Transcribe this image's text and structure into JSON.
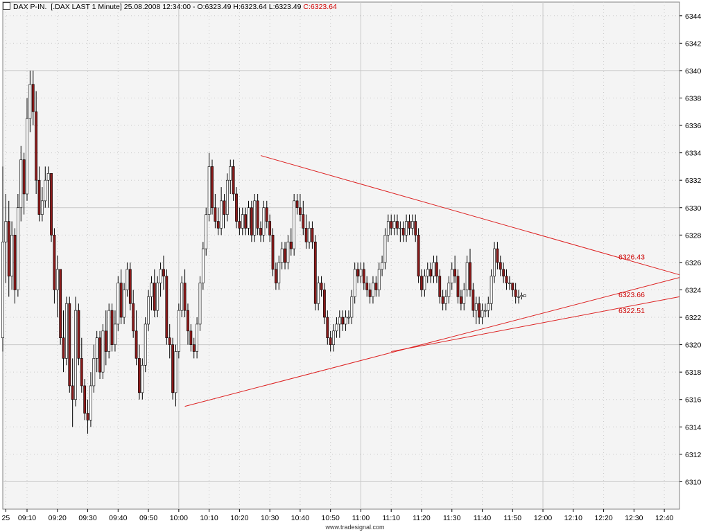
{
  "header": {
    "instrument": "DAX P-IN.",
    "description": "[.DAX LAST 1 Minute]",
    "datetime": "25.08.2008 12:34:00",
    "ohlc": "O:6323.49 H:6323.64 L:6323.49",
    "close": "C:6323.64"
  },
  "footer": {
    "watermark": "www.tradesignal.com"
  },
  "colors": {
    "background": "#f4f4f4",
    "grid": "#c8c8c8",
    "up_candle": "#ffffff",
    "down_candle": "#8b1a1a",
    "trendline": "#dd2222",
    "label": "#cc0000"
  },
  "chart_data": {
    "type": "candlestick",
    "ylim": [
      6308,
      6345
    ],
    "xlim_minutes": [
      542,
      765
    ],
    "y_ticks": [
      6310,
      6312,
      6314,
      6316,
      6318,
      6320,
      6322,
      6324,
      6326,
      6328,
      6330,
      6332,
      6334,
      6336,
      6338,
      6340,
      6342,
      6344
    ],
    "y_tick_labels": [
      "6310",
      "6312",
      "6314",
      "6316",
      "6318",
      "6320",
      "6322",
      "6324",
      "6326",
      "6328",
      "6330",
      "6332",
      "6334",
      "6336",
      "6338",
      "6340",
      "6342",
      "6344"
    ],
    "x_ticks": [
      543,
      550,
      560,
      570,
      580,
      590,
      600,
      610,
      620,
      630,
      640,
      650,
      660,
      670,
      680,
      690,
      700,
      710,
      720,
      730,
      740,
      750,
      760
    ],
    "x_tick_labels": [
      "25",
      "09:10",
      "09:20",
      "09:30",
      "09:40",
      "09:50",
      "10:00",
      "10:10",
      "10:20",
      "10:30",
      "10:40",
      "10:50",
      "11:00",
      "11:10",
      "11:20",
      "11:30",
      "11:40",
      "11:50",
      "12:00",
      "12:10",
      "12:20",
      "12:30",
      "12:40"
    ],
    "major_grid_y": [
      6310,
      6320,
      6330,
      6340
    ],
    "major_grid_x": [
      600,
      660,
      720
    ],
    "candles": [
      [
        542,
        6320.5,
        6333,
        6319.5,
        6327.5
      ],
      [
        543,
        6327.5,
        6331,
        6324.5,
        6329
      ],
      [
        544,
        6329,
        6330.5,
        6323.5,
        6325
      ],
      [
        545,
        6325,
        6329,
        6324,
        6328
      ],
      [
        546,
        6328,
        6328.5,
        6323,
        6324
      ],
      [
        547,
        6324,
        6331,
        6323.5,
        6330
      ],
      [
        548,
        6330,
        6334.5,
        6329,
        6333.5
      ],
      [
        549,
        6333.5,
        6334,
        6329.5,
        6331
      ],
      [
        550,
        6331,
        6338,
        6330.5,
        6336.5
      ],
      [
        551,
        6336.5,
        6340,
        6335.5,
        6339
      ],
      [
        552,
        6339,
        6340,
        6336,
        6337
      ],
      [
        553,
        6337,
        6338.5,
        6331,
        6332
      ],
      [
        554,
        6332,
        6333,
        6329,
        6329.5
      ],
      [
        555,
        6329.5,
        6331.5,
        6329,
        6330.5
      ],
      [
        556,
        6330.5,
        6333,
        6330,
        6332
      ],
      [
        557,
        6332,
        6333,
        6330,
        6332.5
      ],
      [
        558,
        6332.5,
        6332.5,
        6327.5,
        6328
      ],
      [
        559,
        6328,
        6328.5,
        6323,
        6324
      ],
      [
        560,
        6324,
        6326.5,
        6322,
        6325.5
      ],
      [
        561,
        6325.5,
        6325.5,
        6320,
        6320.5
      ],
      [
        562,
        6320.5,
        6322.5,
        6318,
        6319
      ],
      [
        563,
        6319,
        6323.5,
        6318.5,
        6323
      ],
      [
        564,
        6323,
        6323.5,
        6316.5,
        6317
      ],
      [
        565,
        6317,
        6319,
        6314,
        6316
      ],
      [
        566,
        6316,
        6323.5,
        6315.5,
        6322.5
      ],
      [
        567,
        6322.5,
        6323,
        6318.5,
        6319
      ],
      [
        568,
        6319,
        6320.5,
        6316.5,
        6317
      ],
      [
        569,
        6317,
        6317.5,
        6314.5,
        6315
      ],
      [
        570,
        6315,
        6316,
        6313.5,
        6314.5
      ],
      [
        571,
        6314.5,
        6318,
        6314,
        6317
      ],
      [
        572,
        6317,
        6320,
        6316.5,
        6319
      ],
      [
        573,
        6319,
        6321,
        6318,
        6320.5
      ],
      [
        574,
        6320.5,
        6321,
        6317.5,
        6318
      ],
      [
        575,
        6318,
        6321.5,
        6317.5,
        6321
      ],
      [
        576,
        6321,
        6322.5,
        6318.5,
        6319.5
      ],
      [
        577,
        6319.5,
        6323,
        6319,
        6322.5
      ],
      [
        578,
        6322.5,
        6323,
        6319.5,
        6320
      ],
      [
        579,
        6320,
        6322.5,
        6319.5,
        6321.5
      ],
      [
        580,
        6321.5,
        6325,
        6321,
        6324.5
      ],
      [
        581,
        6324.5,
        6325.5,
        6321.5,
        6322
      ],
      [
        582,
        6322,
        6324.5,
        6321.5,
        6324
      ],
      [
        583,
        6324,
        6326,
        6323.5,
        6325.5
      ],
      [
        584,
        6325.5,
        6326,
        6322.5,
        6323
      ],
      [
        585,
        6323,
        6324,
        6320.5,
        6321
      ],
      [
        586,
        6321,
        6322.5,
        6318.5,
        6319
      ],
      [
        587,
        6319,
        6320,
        6316,
        6316.5
      ],
      [
        588,
        6316.5,
        6319,
        6316,
        6318.5
      ],
      [
        589,
        6318.5,
        6322,
        6318,
        6321.5
      ],
      [
        590,
        6321.5,
        6324,
        6321,
        6323.5
      ],
      [
        591,
        6323.5,
        6325,
        6322.5,
        6324.5
      ],
      [
        592,
        6324.5,
        6325.5,
        6322,
        6322.5
      ],
      [
        593,
        6322.5,
        6325,
        6322,
        6324.5
      ],
      [
        594,
        6324.5,
        6326,
        6323.5,
        6325.5
      ],
      [
        595,
        6325.5,
        6326.5,
        6324,
        6325
      ],
      [
        596,
        6325,
        6325.5,
        6320,
        6320.5
      ],
      [
        597,
        6320.5,
        6321.5,
        6319,
        6320
      ],
      [
        598,
        6320,
        6320.5,
        6316,
        6316.5
      ],
      [
        599,
        6316.5,
        6320,
        6315.5,
        6319.5
      ],
      [
        600,
        6319.5,
        6323,
        6319,
        6322.5
      ],
      [
        601,
        6322.5,
        6325,
        6322,
        6324.5
      ],
      [
        602,
        6324.5,
        6325.5,
        6322,
        6322.5
      ],
      [
        603,
        6322.5,
        6323,
        6320,
        6321
      ],
      [
        604,
        6321,
        6321.5,
        6319.5,
        6320
      ],
      [
        605,
        6320,
        6320.5,
        6319,
        6319.5
      ],
      [
        606,
        6319.5,
        6322,
        6319,
        6321.5
      ],
      [
        607,
        6321.5,
        6325,
        6321,
        6324.5
      ],
      [
        608,
        6324.5,
        6327.5,
        6324,
        6327
      ],
      [
        609,
        6327,
        6330,
        6326.5,
        6329.5
      ],
      [
        610,
        6329.5,
        6334,
        6329,
        6333
      ],
      [
        611,
        6333,
        6333.5,
        6329.5,
        6330
      ],
      [
        612,
        6330,
        6331,
        6328.5,
        6329
      ],
      [
        613,
        6329,
        6330,
        6328,
        6328.5
      ],
      [
        614,
        6328.5,
        6331.5,
        6328,
        6330.5
      ],
      [
        615,
        6330.5,
        6331,
        6328.5,
        6329.5
      ],
      [
        616,
        6329.5,
        6332.5,
        6329,
        6332
      ],
      [
        617,
        6332,
        6333.5,
        6331,
        6333
      ],
      [
        618,
        6333,
        6333.5,
        6330.5,
        6331
      ],
      [
        619,
        6331,
        6331.5,
        6328.5,
        6329
      ],
      [
        620,
        6329,
        6330,
        6328,
        6328.5
      ],
      [
        621,
        6328.5,
        6330,
        6328,
        6329.5
      ],
      [
        622,
        6329.5,
        6330,
        6328,
        6328.5
      ],
      [
        623,
        6328.5,
        6330.5,
        6328,
        6330
      ],
      [
        624,
        6330,
        6330.5,
        6327.5,
        6328
      ],
      [
        625,
        6328,
        6331,
        6327.5,
        6330.5
      ],
      [
        626,
        6330.5,
        6331,
        6328,
        6328.5
      ],
      [
        627,
        6328.5,
        6329,
        6327.5,
        6328
      ],
      [
        628,
        6328,
        6330.5,
        6327.5,
        6330
      ],
      [
        629,
        6330,
        6330.5,
        6328.5,
        6329
      ],
      [
        630,
        6329,
        6329.5,
        6327.5,
        6328
      ],
      [
        631,
        6328,
        6328.5,
        6325,
        6325.5
      ],
      [
        632,
        6325.5,
        6326,
        6324,
        6324.5
      ],
      [
        633,
        6324.5,
        6326.5,
        6324,
        6326
      ],
      [
        634,
        6326,
        6327.5,
        6325.5,
        6327
      ],
      [
        635,
        6327,
        6327.5,
        6325.5,
        6326
      ],
      [
        636,
        6326,
        6328,
        6325.5,
        6327.5
      ],
      [
        637,
        6327.5,
        6328.5,
        6326.5,
        6327
      ],
      [
        638,
        6327,
        6331,
        6326.5,
        6330.5
      ],
      [
        639,
        6330.5,
        6331,
        6329.5,
        6330
      ],
      [
        640,
        6330,
        6331,
        6329,
        6329.5
      ],
      [
        641,
        6329.5,
        6330.5,
        6328,
        6328.5
      ],
      [
        642,
        6328.5,
        6329.5,
        6327,
        6327.5
      ],
      [
        643,
        6327.5,
        6329,
        6327,
        6328.5
      ],
      [
        644,
        6328.5,
        6329,
        6327,
        6327.5
      ],
      [
        645,
        6327.5,
        6328,
        6322.5,
        6323
      ],
      [
        646,
        6323,
        6325,
        6322.5,
        6324.5
      ],
      [
        647,
        6324.5,
        6325,
        6323.5,
        6324
      ],
      [
        648,
        6324,
        6324.5,
        6321.5,
        6322
      ],
      [
        649,
        6322,
        6322.5,
        6320,
        6320.5
      ],
      [
        650,
        6320.5,
        6321,
        6319.5,
        6320
      ],
      [
        651,
        6320,
        6321.5,
        6319.5,
        6321
      ],
      [
        652,
        6321,
        6322,
        6320.5,
        6321.5
      ],
      [
        653,
        6321.5,
        6322.5,
        6320.5,
        6322
      ],
      [
        654,
        6322,
        6322.5,
        6321,
        6321.5
      ],
      [
        655,
        6321.5,
        6322.5,
        6321,
        6322
      ],
      [
        656,
        6322,
        6322.5,
        6321.5,
        6322
      ],
      [
        657,
        6322,
        6324,
        6321.5,
        6323.5
      ],
      [
        658,
        6323.5,
        6326,
        6323,
        6325.5
      ],
      [
        659,
        6325.5,
        6326,
        6324.5,
        6325
      ],
      [
        660,
        6325,
        6326,
        6324.5,
        6325.5
      ],
      [
        661,
        6325.5,
        6326,
        6324,
        6324.5
      ],
      [
        662,
        6324.5,
        6325,
        6323.5,
        6324
      ],
      [
        663,
        6324,
        6324.5,
        6323,
        6323.5
      ],
      [
        664,
        6323.5,
        6325,
        6323,
        6324.5
      ],
      [
        665,
        6324.5,
        6325,
        6323.5,
        6324
      ],
      [
        666,
        6324,
        6326,
        6323.5,
        6325.5
      ],
      [
        667,
        6325.5,
        6326.5,
        6325,
        6326
      ],
      [
        668,
        6326,
        6328.5,
        6325.5,
        6328
      ],
      [
        669,
        6328,
        6329.5,
        6327.5,
        6329
      ],
      [
        670,
        6329,
        6329.5,
        6328,
        6328.5
      ],
      [
        671,
        6328.5,
        6329.5,
        6328,
        6329
      ],
      [
        672,
        6329,
        6329.5,
        6328,
        6328.5
      ],
      [
        673,
        6328.5,
        6329,
        6327.5,
        6328.5
      ],
      [
        674,
        6328.5,
        6329,
        6327.5,
        6328
      ],
      [
        675,
        6328,
        6329.5,
        6327.5,
        6329
      ],
      [
        676,
        6329,
        6329.5,
        6328,
        6328.5
      ],
      [
        677,
        6328.5,
        6329.5,
        6328,
        6329
      ],
      [
        678,
        6329,
        6329.5,
        6327.5,
        6328
      ],
      [
        679,
        6328,
        6328.5,
        6324.5,
        6325
      ],
      [
        680,
        6325,
        6325.5,
        6323.5,
        6324
      ],
      [
        681,
        6324,
        6325.5,
        6323.5,
        6325
      ],
      [
        682,
        6325,
        6326,
        6324.5,
        6325.5
      ],
      [
        683,
        6325.5,
        6326,
        6324.5,
        6325
      ],
      [
        684,
        6325,
        6326.5,
        6324.5,
        6326
      ],
      [
        685,
        6326,
        6326.5,
        6324.5,
        6325
      ],
      [
        686,
        6325,
        6325.5,
        6323,
        6323.5
      ],
      [
        687,
        6323.5,
        6324,
        6322.5,
        6323
      ],
      [
        688,
        6323,
        6324,
        6322.5,
        6323.5
      ],
      [
        689,
        6323.5,
        6325,
        6323,
        6324.5
      ],
      [
        690,
        6324.5,
        6326,
        6324,
        6325.5
      ],
      [
        691,
        6325.5,
        6326.5,
        6324.5,
        6325
      ],
      [
        692,
        6325,
        6325.5,
        6323,
        6323.5
      ],
      [
        693,
        6323.5,
        6324,
        6322.5,
        6323
      ],
      [
        694,
        6323,
        6324.5,
        6322.5,
        6324
      ],
      [
        695,
        6324,
        6326.5,
        6323.5,
        6326
      ],
      [
        696,
        6326,
        6327,
        6323.5,
        6324
      ],
      [
        697,
        6324,
        6324.5,
        6322,
        6322.5
      ],
      [
        698,
        6322.5,
        6323.5,
        6321.5,
        6323
      ],
      [
        699,
        6323,
        6323.5,
        6321.5,
        6322
      ],
      [
        700,
        6322,
        6323,
        6321.5,
        6322.5
      ],
      [
        701,
        6322.5,
        6323,
        6322,
        6322.5
      ],
      [
        702,
        6322.5,
        6323.5,
        6322,
        6323
      ],
      [
        703,
        6323,
        6325.5,
        6322.5,
        6325
      ],
      [
        704,
        6325,
        6327.5,
        6324.5,
        6327
      ],
      [
        705,
        6327,
        6327.5,
        6325.5,
        6326
      ],
      [
        706,
        6326,
        6326.5,
        6325,
        6325.5
      ],
      [
        707,
        6325.5,
        6326,
        6324.5,
        6325
      ],
      [
        708,
        6325,
        6325.5,
        6324,
        6324.5
      ],
      [
        709,
        6324.5,
        6325,
        6324,
        6324.5
      ],
      [
        710,
        6324.5,
        6324.5,
        6323.5,
        6324
      ],
      [
        711,
        6324,
        6324.5,
        6323,
        6323.5
      ],
      [
        712,
        6323.5,
        6324,
        6323,
        6323.5
      ],
      [
        713,
        6323.5,
        6323.8,
        6323.3,
        6323.6
      ],
      [
        714,
        6323.49,
        6323.64,
        6323.49,
        6323.64
      ]
    ],
    "trendlines": [
      {
        "x1": 627,
        "y1": 6333.8,
        "x2": 765,
        "y2": 6325.1
      },
      {
        "x1": 602,
        "y1": 6315.5,
        "x2": 765,
        "y2": 6324.9
      },
      {
        "x1": 670,
        "y1": 6319.5,
        "x2": 765,
        "y2": 6323.5
      }
    ],
    "annotations": [
      {
        "value": 6326.43,
        "label": "6326.43"
      },
      {
        "value": 6323.66,
        "label": "6323.66"
      },
      {
        "value": 6322.51,
        "label": "6322.51"
      }
    ]
  }
}
